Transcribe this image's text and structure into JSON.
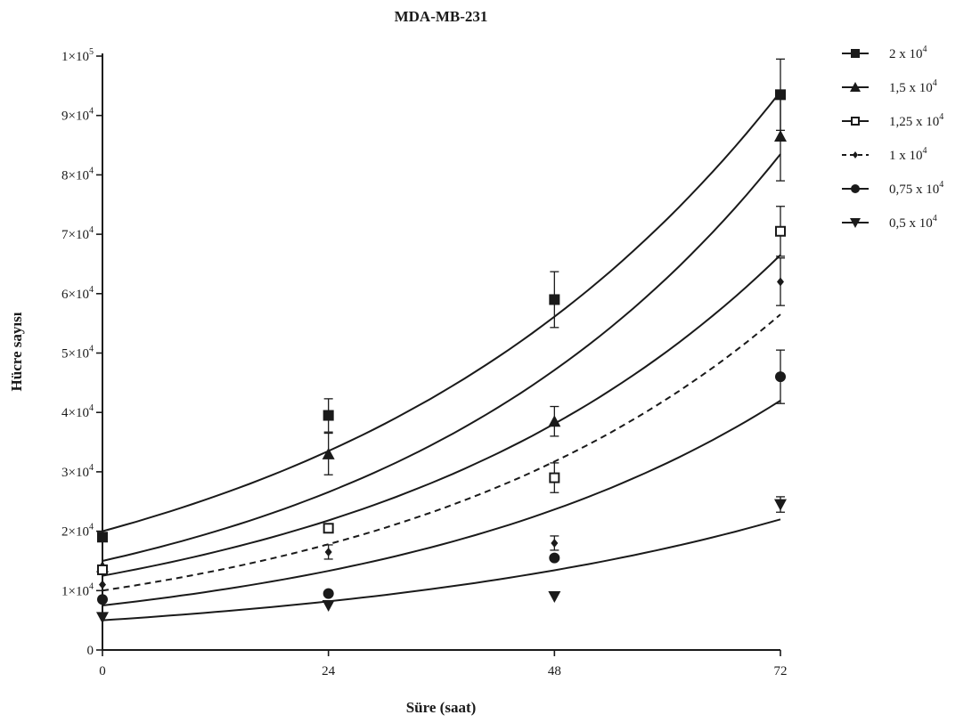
{
  "chart_data": {
    "type": "scatter",
    "title": "MDA-MB-231",
    "xlabel": "Süre (saat)",
    "ylabel": "Hücre sayısı",
    "xlim": [
      0,
      72
    ],
    "ylim": [
      0,
      100000
    ],
    "x_ticks": [
      0,
      24,
      48,
      72
    ],
    "x_tick_labels": [
      "0",
      "24",
      "48",
      "72"
    ],
    "y_ticks": [
      0,
      10000,
      20000,
      30000,
      40000,
      50000,
      60000,
      70000,
      80000,
      90000,
      100000
    ],
    "y_tick_labels": [
      {
        "mant": "0",
        "exp": ""
      },
      {
        "mant": "1×10",
        "exp": "4"
      },
      {
        "mant": "2×10",
        "exp": "4"
      },
      {
        "mant": "3×10",
        "exp": "4"
      },
      {
        "mant": "4×10",
        "exp": "4"
      },
      {
        "mant": "5×10",
        "exp": "4"
      },
      {
        "mant": "6×10",
        "exp": "4"
      },
      {
        "mant": "7×10",
        "exp": "4"
      },
      {
        "mant": "8×10",
        "exp": "4"
      },
      {
        "mant": "9×10",
        "exp": "4"
      },
      {
        "mant": "1×10",
        "exp": "5"
      }
    ],
    "grid": false,
    "legend_position": "top-right",
    "x": [
      0,
      24,
      48,
      72
    ],
    "series": [
      {
        "name_base": "2 x 10",
        "name_exp": "4",
        "marker": "square-filled",
        "line": "solid",
        "values": [
          19000,
          39500,
          59000,
          93500
        ],
        "errors": [
          0,
          2800,
          4700,
          6000
        ],
        "fit": [
          20000,
          33500,
          56000,
          94000
        ]
      },
      {
        "name_base": "1,5  x 10",
        "name_exp": "4",
        "marker": "triangle-up-filled",
        "line": "solid",
        "values": [
          14000,
          33000,
          38500,
          86500
        ],
        "errors": [
          0,
          3500,
          2500,
          7500
        ],
        "fit": [
          15000,
          26500,
          47000,
          83500
        ]
      },
      {
        "name_base": "1,25 x 10",
        "name_exp": "4",
        "marker": "square-open",
        "line": "solid",
        "values": [
          13500,
          20500,
          29000,
          70500
        ],
        "errors": [
          0,
          0,
          2500,
          4200
        ],
        "fit": [
          12500,
          21500,
          38000,
          66500
        ]
      },
      {
        "name_base": "1 x 10",
        "name_exp": "4",
        "marker": "diamond-filled",
        "line": "dashed",
        "values": [
          11000,
          16500,
          18000,
          62000
        ],
        "errors": [
          0,
          1200,
          1200,
          4000
        ],
        "fit": [
          10000,
          17500,
          31500,
          56500
        ]
      },
      {
        "name_base": "0,75 x 10",
        "name_exp": "4",
        "marker": "circle-filled",
        "line": "solid",
        "values": [
          8500,
          9500,
          15500,
          46000
        ],
        "errors": [
          0,
          0,
          0,
          4500
        ],
        "fit": [
          7500,
          13000,
          23500,
          42000
        ]
      },
      {
        "name_base": "0,5 x 10",
        "name_exp": "4",
        "marker": "triangle-down-filled",
        "line": "solid",
        "values": [
          5500,
          7500,
          9000,
          24500
        ],
        "errors": [
          0,
          0,
          0,
          1300
        ],
        "fit": [
          5000,
          8000,
          13500,
          22000
        ]
      }
    ]
  }
}
